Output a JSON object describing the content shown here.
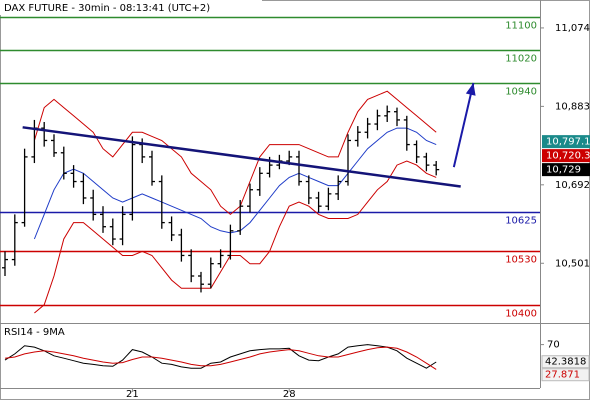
{
  "chart_data": {
    "type": "ohlc",
    "title": "DAX FUTURE - 30min - 08:13:41 (UTC+2)",
    "categories": [
      null,
      null,
      null,
      null,
      null,
      null,
      null,
      null,
      null,
      null,
      null,
      null,
      null,
      "21",
      null,
      null,
      null,
      null,
      null,
      null,
      null,
      null,
      null,
      null,
      null,
      null,
      null,
      null,
      null,
      "28",
      null,
      null,
      null,
      null,
      null,
      null,
      null,
      null,
      null,
      null,
      null,
      null,
      null,
      null,
      null
    ],
    "open": [
      10490,
      10510,
      10600,
      10760,
      10830,
      10800,
      10770,
      10720,
      10700,
      10660,
      10620,
      10590,
      10560,
      10620,
      10790,
      10760,
      10700,
      10600,
      10570,
      10520,
      10470,
      10450,
      10500,
      10520,
      10580,
      10640,
      10680,
      10720,
      10740,
      10750,
      10760,
      10700,
      10660,
      10640,
      10670,
      10700,
      10800,
      10820,
      10840,
      10860,
      10870,
      10850,
      10790,
      10760,
      10740
    ],
    "high": [
      10530,
      10620,
      10780,
      10850,
      10845,
      10815,
      10785,
      10740,
      10720,
      10680,
      10640,
      10610,
      10640,
      10810,
      10805,
      10775,
      10715,
      10615,
      10585,
      10535,
      10480,
      10515,
      10535,
      10595,
      10655,
      10695,
      10735,
      10760,
      10765,
      10775,
      10775,
      10715,
      10675,
      10685,
      10715,
      10815,
      10835,
      10855,
      10875,
      10885,
      10880,
      10860,
      10800,
      10770,
      10750
    ],
    "low": [
      10470,
      10495,
      10590,
      10745,
      10785,
      10760,
      10705,
      10685,
      10645,
      10605,
      10575,
      10545,
      10545,
      10605,
      10745,
      10690,
      10585,
      10555,
      10505,
      10455,
      10430,
      10440,
      10490,
      10510,
      10570,
      10625,
      10665,
      10710,
      10730,
      10740,
      10690,
      10645,
      10625,
      10630,
      10655,
      10690,
      10785,
      10805,
      10825,
      10845,
      10835,
      10775,
      10745,
      10725,
      10715
    ],
    "close": [
      10510,
      10600,
      10760,
      10830,
      10800,
      10770,
      10720,
      10700,
      10660,
      10620,
      10590,
      10560,
      10620,
      10790,
      10760,
      10700,
      10600,
      10570,
      10520,
      10470,
      10450,
      10500,
      10520,
      10580,
      10640,
      10680,
      10720,
      10740,
      10750,
      10760,
      10700,
      10660,
      10640,
      10670,
      10700,
      10800,
      10820,
      10840,
      10860,
      10870,
      10850,
      10790,
      10760,
      10740,
      10729
    ],
    "candle_color": "#000000",
    "series": [
      {
        "color": "#cc0000",
        "values": [
          null,
          null,
          null,
          10800,
          10880,
          10900,
          10880,
          10860,
          10840,
          10820,
          10780,
          10760,
          10790,
          10820,
          10820,
          10810,
          10800,
          10780,
          10760,
          10720,
          10700,
          10680,
          10640,
          10620,
          10640,
          10700,
          10760,
          10790,
          10790,
          10790,
          10790,
          10780,
          10770,
          10760,
          10760,
          10820,
          10870,
          10900,
          10910,
          10920,
          10900,
          10880,
          10860,
          10840,
          10820
        ]
      },
      {
        "color": "#cc0000",
        "values": [
          null,
          null,
          null,
          10380,
          10400,
          10470,
          10560,
          10600,
          10600,
          10580,
          10560,
          10540,
          10520,
          10520,
          10530,
          10520,
          10490,
          10460,
          10440,
          10440,
          10440,
          10440,
          10480,
          10520,
          10520,
          10500,
          10500,
          10530,
          10590,
          10640,
          10650,
          10640,
          10620,
          10610,
          10610,
          10610,
          10620,
          10650,
          10680,
          10700,
          10740,
          10750,
          10740,
          10720,
          10710
        ]
      },
      {
        "color": "#1f3cc8",
        "values": [
          null,
          null,
          null,
          10560,
          10620,
          10680,
          10720,
          10730,
          10720,
          10700,
          10680,
          10660,
          10650,
          10660,
          10670,
          10660,
          10650,
          10640,
          10630,
          10620,
          10610,
          10590,
          10580,
          10575,
          10580,
          10600,
          10630,
          10660,
          10690,
          10710,
          10720,
          10710,
          10700,
          10690,
          10690,
          10720,
          10750,
          10780,
          10800,
          10820,
          10830,
          10830,
          10820,
          10800,
          10790
        ]
      }
    ],
    "ylim": [
      10358,
      11142
    ],
    "yticks": [
      {
        "value": 11074,
        "label": "11,074"
      },
      {
        "value": 10883,
        "label": "10,883"
      },
      {
        "value": 10692,
        "label": "10,692"
      },
      {
        "value": 10501,
        "label": "10,501"
      }
    ],
    "levels": [
      {
        "value": 11100,
        "color": "#2e8b2e"
      },
      {
        "value": 11020,
        "color": "#2e8b2e"
      },
      {
        "value": 10940,
        "color": "#2e8b2e"
      },
      {
        "value": 10625,
        "color": "#1a1aa8"
      },
      {
        "value": 10530,
        "color": "#cc0000"
      },
      {
        "value": 10400,
        "color": "#cc0000"
      }
    ],
    "trendline": {
      "x": [
        1.8,
        46.5
      ],
      "values": [
        10832,
        10688
      ],
      "color": "#141478"
    },
    "arrow": {
      "x": [
        45.8,
        47.8
      ],
      "values": [
        10735,
        10940
      ],
      "color": "#1a1aa8"
    },
    "price_labels": [
      {
        "value": 10797.1,
        "label": "10,797.1",
        "color": "#1a8a8a"
      },
      {
        "value": 10720.3,
        "label": "10,720.3",
        "color": "#cc0000"
      },
      {
        "value": 10729,
        "label": "10,729",
        "color": "#000000"
      }
    ],
    "rsi": {
      "title": "RSI14 - 9MA",
      "ylim": [
        0,
        100
      ],
      "yticks": [
        70
      ],
      "series": [
        {
          "color": "#000000",
          "values": [
            45,
            55,
            68,
            66,
            60,
            52,
            48,
            44,
            40,
            38,
            36,
            35,
            45,
            62,
            58,
            50,
            40,
            38,
            34,
            32,
            32,
            40,
            42,
            50,
            55,
            60,
            62,
            63,
            63,
            64,
            52,
            45,
            44,
            50,
            55,
            66,
            68,
            70,
            68,
            66,
            60,
            48,
            40,
            32,
            42
          ]
        },
        {
          "color": "#cc0000",
          "values": [
            48,
            50,
            55,
            58,
            60,
            58,
            55,
            52,
            48,
            45,
            42,
            40,
            41,
            46,
            50,
            50,
            48,
            45,
            42,
            38,
            36,
            36,
            38,
            42,
            46,
            50,
            55,
            58,
            60,
            62,
            60,
            56,
            52,
            50,
            50,
            54,
            58,
            62,
            65,
            66,
            64,
            58,
            50,
            40,
            30
          ]
        }
      ],
      "value_labels": [
        {
          "value": 42.3818,
          "color": "#000000"
        },
        {
          "value": 27.871,
          "color": "#cc0000"
        }
      ]
    }
  }
}
